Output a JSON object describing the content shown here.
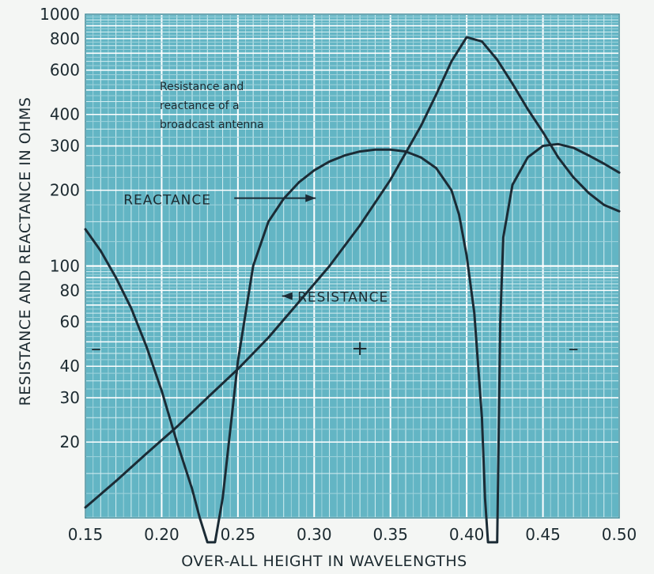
{
  "chart_data": {
    "type": "line",
    "title": "Resistance and reactance of a broadcast antenna",
    "title_lines": [
      "Resistance and",
      "reactance of a",
      "broadcast antenna"
    ],
    "xlabel": "OVER-ALL HEIGHT IN WAVELENGTHS",
    "ylabel": "RESISTANCE AND REACTANCE IN OHMS",
    "y_scale": "log",
    "xlim": [
      0.15,
      0.5
    ],
    "ylim": [
      10,
      1000
    ],
    "grid": true,
    "x_ticks": [
      0.15,
      0.2,
      0.25,
      0.3,
      0.35,
      0.4,
      0.45,
      0.5
    ],
    "x_tick_labels": [
      "0.15",
      "0.20",
      "0.25",
      "0.30",
      "0.35",
      "0.40",
      "0.45",
      "0.50"
    ],
    "y_ticks": [
      20,
      30,
      40,
      60,
      80,
      100,
      200,
      300,
      400,
      600,
      800,
      1000
    ],
    "y_tick_labels": [
      "20",
      "30",
      "40",
      "60",
      "80",
      "100",
      "200",
      "300",
      "400",
      "600",
      "800",
      "1000"
    ],
    "series": [
      {
        "name": "RESISTANCE",
        "x": [
          0.15,
          0.17,
          0.19,
          0.21,
          0.23,
          0.25,
          0.27,
          0.29,
          0.31,
          0.33,
          0.35,
          0.37,
          0.38,
          0.39,
          0.4,
          0.41,
          0.42,
          0.43,
          0.44,
          0.45,
          0.46,
          0.47,
          0.48,
          0.49,
          0.5
        ],
        "y": [
          11,
          14,
          18,
          23,
          30,
          39,
          52,
          72,
          100,
          145,
          220,
          360,
          480,
          650,
          810,
          780,
          660,
          530,
          420,
          340,
          270,
          225,
          195,
          175,
          165
        ]
      },
      {
        "name": "REACTANCE",
        "x": [
          0.15,
          0.16,
          0.17,
          0.18,
          0.19,
          0.2,
          0.21,
          0.22,
          0.225,
          0.23,
          0.235,
          0.24,
          0.25,
          0.26,
          0.27,
          0.28,
          0.29,
          0.3,
          0.31,
          0.32,
          0.33,
          0.34,
          0.35,
          0.36,
          0.37,
          0.38,
          0.39,
          0.395,
          0.4,
          0.405,
          0.41,
          0.412,
          0.414,
          0.42,
          0.422,
          0.424,
          0.43,
          0.44,
          0.45,
          0.46,
          0.47,
          0.48,
          0.49,
          0.5
        ],
        "y": [
          140,
          115,
          90,
          68,
          48,
          32,
          20,
          13,
          10,
          8,
          8,
          12,
          42,
          100,
          150,
          185,
          215,
          240,
          260,
          275,
          285,
          290,
          290,
          285,
          270,
          245,
          200,
          160,
          110,
          65,
          25,
          12,
          8,
          8,
          60,
          130,
          210,
          270,
          300,
          305,
          295,
          275,
          255,
          235
        ]
      }
    ],
    "sign_labels": [
      {
        "text": "–",
        "x": 0.157,
        "y": 47
      },
      {
        "text": "+",
        "x": 0.33,
        "y": 47
      },
      {
        "text": "–",
        "x": 0.47,
        "y": 47
      }
    ],
    "annotations": [
      {
        "text": "REACTANCE",
        "x": 0.175,
        "y": 185,
        "arrow_to": [
          0.301,
          186
        ]
      },
      {
        "text": "RESISTANCE",
        "x": 0.289,
        "y": 76,
        "arrow_to": [
          0.279,
          76
        ]
      }
    ]
  },
  "colors": {
    "grid_bg": "#63b5c4",
    "grid_major": "#ffffff",
    "grid_minor": "#9fd3dc",
    "curve": "#1b2b35",
    "text": "#1c2a30",
    "page": "#f4f6f4"
  }
}
